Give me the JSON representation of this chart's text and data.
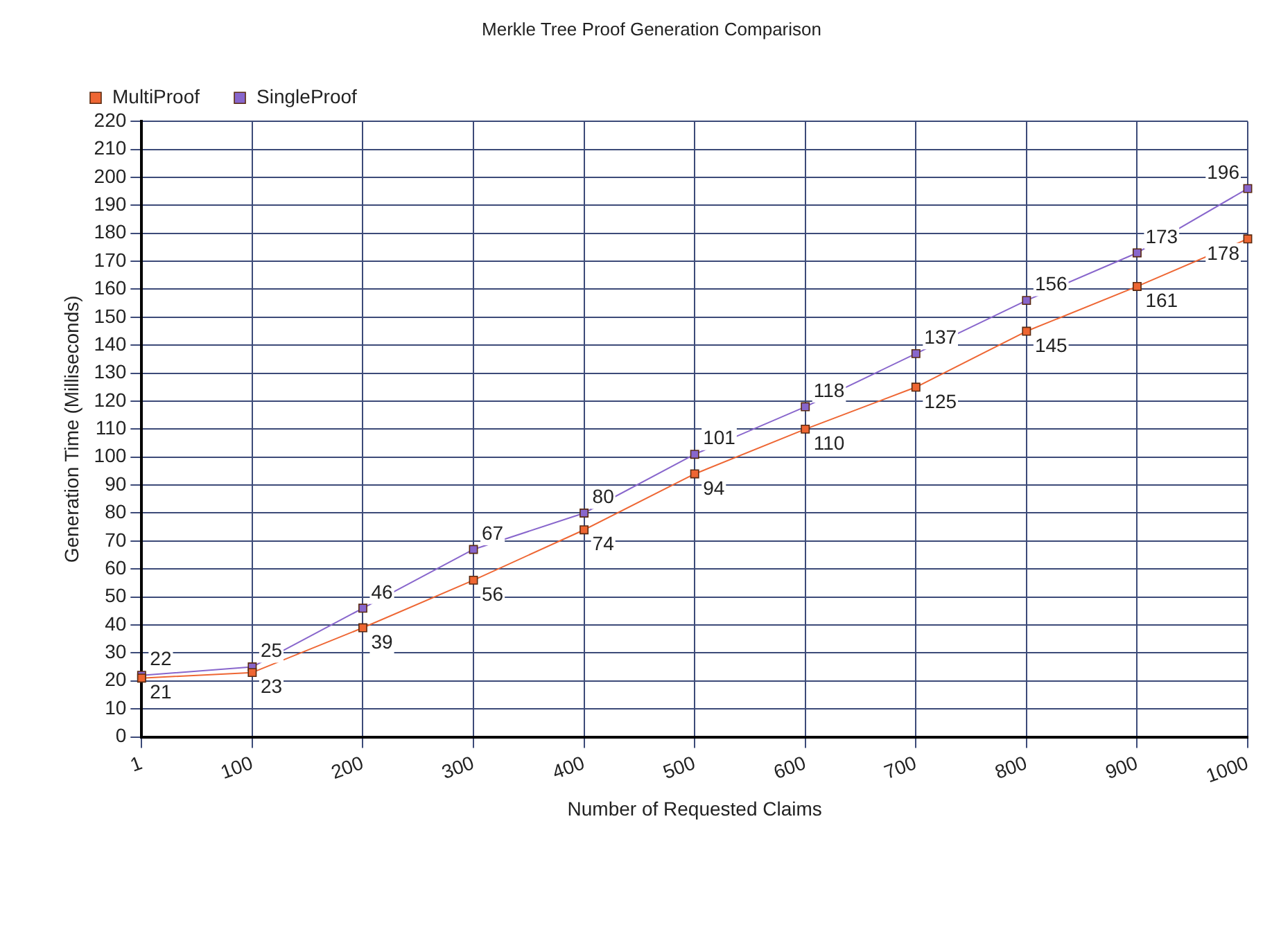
{
  "chart_data": {
    "type": "line",
    "title": "Merkle Tree Proof Generation Comparison",
    "xlabel": "Number of Requested Claims",
    "ylabel": "Generation Time (Milliseconds)",
    "categories": [
      "1",
      "100",
      "200",
      "300",
      "400",
      "500",
      "600",
      "700",
      "800",
      "900",
      "1000"
    ],
    "series": [
      {
        "name": "MultiProof",
        "color": "#ee6633",
        "values": [
          21,
          23,
          39,
          56,
          74,
          94,
          110,
          125,
          145,
          161,
          178
        ]
      },
      {
        "name": "SingleProof",
        "color": "#8866cc",
        "values": [
          22,
          25,
          46,
          67,
          80,
          101,
          118,
          137,
          156,
          173,
          196
        ]
      }
    ],
    "ylim": [
      0,
      220
    ],
    "yticks": [
      0,
      10,
      20,
      30,
      40,
      50,
      60,
      70,
      80,
      90,
      100,
      110,
      120,
      130,
      140,
      150,
      160,
      170,
      180,
      190,
      200,
      210,
      220
    ],
    "grid": true,
    "legend": "top left",
    "marker": "square",
    "line_style": "solid",
    "data_labels": true
  }
}
